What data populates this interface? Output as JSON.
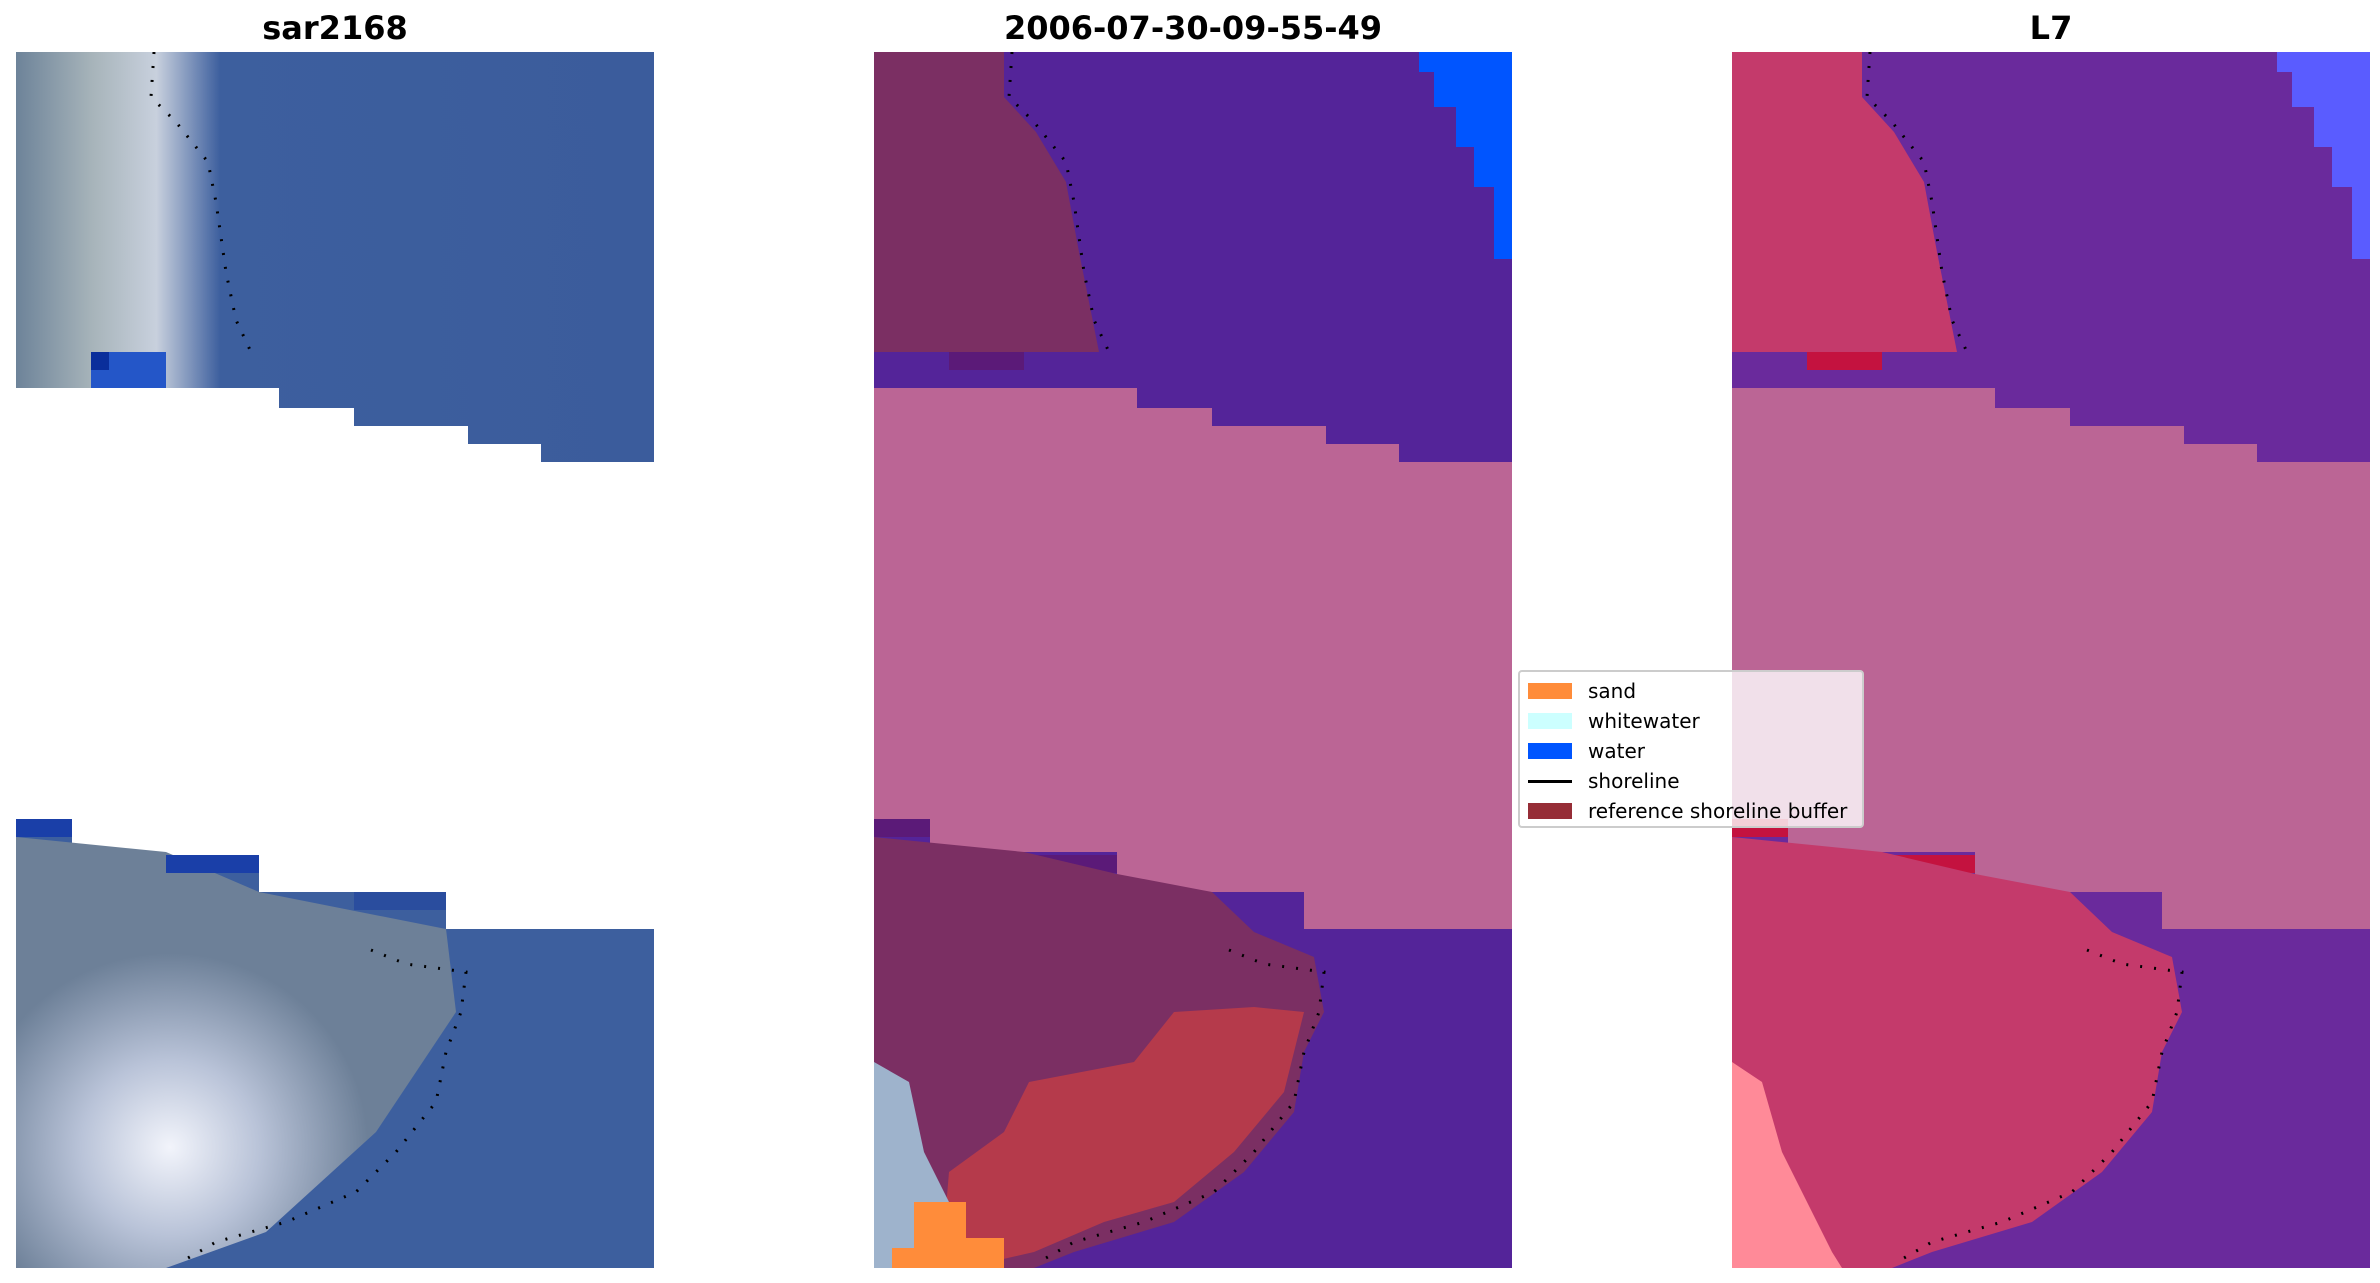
{
  "panels": [
    {
      "title": "sar2168"
    },
    {
      "title": "2006-07-30-09-55-49"
    },
    {
      "title": "L7"
    }
  ],
  "legend": {
    "items": [
      {
        "label": "sand",
        "color": "#ff8c3a",
        "kind": "patch"
      },
      {
        "label": "whitewater",
        "color": "#ccffff",
        "kind": "patch"
      },
      {
        "label": "water",
        "color": "#0055ff",
        "kind": "patch"
      },
      {
        "label": "shoreline",
        "color": "#000000",
        "kind": "line"
      },
      {
        "label": "reference shoreline buffer",
        "color": "#962d37",
        "kind": "patch"
      }
    ]
  },
  "colors": {
    "rgb_water": "#3d5f9e",
    "rgb_shore": "#8f9fb3",
    "rgb_bright": "#e8ecf6",
    "class_water": "#542499",
    "class_land": "#7b2f63",
    "class_nodata": "#bb6595",
    "class_buffer": "#b53a4b",
    "class_sand": "#ff8c3a",
    "class_waterblue": "#0055ff",
    "index_land": "#c43a6b",
    "index_water": "#6a2a9c",
    "index_nodata": "#bb6595",
    "index_light": "#ff8a98",
    "index_water_light": "#5a5cff"
  }
}
